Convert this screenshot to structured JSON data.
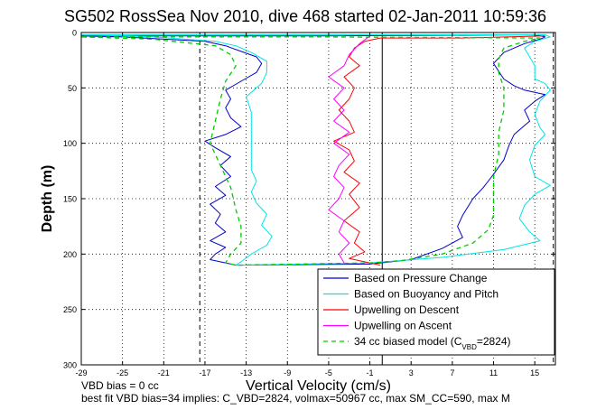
{
  "chart_data": {
    "type": "line",
    "title": "SG502 RossSea Nov 2010, dive 468 started 02-Jan-2011 10:59:36",
    "xlabel": "Vertical Velocity (cm/s)",
    "ylabel": "Depth (m)",
    "xlim": [
      -29,
      17
    ],
    "ylim": [
      300,
      0
    ],
    "y_reversed": true,
    "xticks": [
      -29,
      -25,
      -21,
      -17,
      -13,
      -9,
      -5,
      -1,
      3,
      7,
      11,
      15
    ],
    "yticks": [
      0,
      50,
      100,
      150,
      200,
      250,
      300
    ],
    "grid": "on",
    "grid_style": "dotted",
    "legend_position": "bottom-right",
    "reference_lines": [
      {
        "x": -17.5,
        "style": "dashed"
      },
      {
        "x": 0.2,
        "style": "solid"
      },
      {
        "x": 16.8,
        "style": "dashed"
      }
    ],
    "series": [
      {
        "name": "Based on Pressure Change",
        "color": "#0000cc",
        "style": "solid",
        "points": [
          [
            -29,
            3
          ],
          [
            -10,
            3
          ],
          [
            -5,
            3
          ],
          [
            15,
            2
          ],
          [
            16,
            4
          ],
          [
            15.5,
            6
          ],
          [
            14,
            10
          ],
          [
            12,
            18
          ],
          [
            11,
            28
          ],
          [
            12,
            42
          ],
          [
            13,
            48
          ],
          [
            14,
            52
          ],
          [
            16,
            56
          ],
          [
            15,
            62
          ],
          [
            14,
            70
          ],
          [
            14.5,
            80
          ],
          [
            13,
            92
          ],
          [
            12.5,
            102
          ],
          [
            12,
            115
          ],
          [
            11,
            128
          ],
          [
            10,
            140
          ],
          [
            9,
            150
          ],
          [
            8,
            165
          ],
          [
            7.5,
            175
          ],
          [
            8,
            185
          ],
          [
            6,
            195
          ],
          [
            3,
            205
          ],
          [
            -1,
            209
          ],
          [
            -14,
            210
          ],
          [
            -15,
            208
          ],
          [
            -16.5,
            205
          ],
          [
            -16,
            200
          ],
          [
            -15,
            194
          ],
          [
            -16.5,
            188
          ],
          [
            -15,
            180
          ],
          [
            -16,
            172
          ],
          [
            -15.5,
            164
          ],
          [
            -16.5,
            155
          ],
          [
            -15,
            147
          ],
          [
            -16,
            139
          ],
          [
            -14.5,
            130
          ],
          [
            -15.5,
            120
          ],
          [
            -14.5,
            112
          ],
          [
            -16,
            104
          ],
          [
            -17,
            98
          ],
          [
            -15,
            92
          ],
          [
            -13.5,
            85
          ],
          [
            -14.5,
            77
          ],
          [
            -15,
            68
          ],
          [
            -14.5,
            60
          ],
          [
            -15,
            52
          ],
          [
            -13.5,
            44
          ],
          [
            -12,
            36
          ],
          [
            -11.5,
            28
          ],
          [
            -12,
            22
          ],
          [
            -13.5,
            17
          ],
          [
            -15,
            12
          ],
          [
            -17,
            8
          ],
          [
            -25,
            4
          ],
          [
            -29,
            3
          ]
        ]
      },
      {
        "name": "Based on Buoyancy and Pitch",
        "color": "#00e5e5",
        "style": "solid",
        "points": [
          [
            -29,
            2
          ],
          [
            -10,
            2
          ],
          [
            -5,
            2
          ],
          [
            16,
            2
          ],
          [
            16.5,
            4
          ],
          [
            15,
            8
          ],
          [
            14,
            14
          ],
          [
            14.5,
            22
          ],
          [
            15,
            30
          ],
          [
            15,
            42
          ],
          [
            16,
            46
          ],
          [
            16.5,
            52
          ],
          [
            15.5,
            62
          ],
          [
            15,
            74
          ],
          [
            15.5,
            86
          ],
          [
            16,
            92
          ],
          [
            15,
            102
          ],
          [
            14.5,
            115
          ],
          [
            15,
            130
          ],
          [
            16.5,
            138
          ],
          [
            15,
            146
          ],
          [
            14,
            156
          ],
          [
            13.5,
            168
          ],
          [
            14.5,
            180
          ],
          [
            15.5,
            188
          ],
          [
            12,
            196
          ],
          [
            6,
            203
          ],
          [
            -1,
            208
          ],
          [
            -14,
            210
          ],
          [
            -13.5,
            207
          ],
          [
            -12.5,
            200
          ],
          [
            -11,
            192
          ],
          [
            -10.5,
            184
          ],
          [
            -11.5,
            174
          ],
          [
            -11,
            164
          ],
          [
            -12,
            154
          ],
          [
            -12.5,
            144
          ],
          [
            -12,
            134
          ],
          [
            -12.5,
            124
          ],
          [
            -12.5,
            112
          ],
          [
            -12.5,
            100
          ],
          [
            -12.5,
            86
          ],
          [
            -12.5,
            72
          ],
          [
            -13,
            58
          ],
          [
            -11.5,
            46
          ],
          [
            -11,
            36
          ],
          [
            -11,
            26
          ],
          [
            -12.5,
            18
          ],
          [
            -14,
            12
          ],
          [
            -16,
            8
          ],
          [
            -22,
            4
          ],
          [
            -29,
            2
          ]
        ]
      },
      {
        "name": "Upwelling on Descent",
        "color": "#ff0000",
        "style": "solid",
        "points": [
          [
            16,
            3
          ],
          [
            8,
            5
          ],
          [
            0,
            5
          ],
          [
            -1.5,
            8
          ],
          [
            -2.5,
            14
          ],
          [
            -3,
            22
          ],
          [
            -2,
            30
          ],
          [
            -3.5,
            40
          ],
          [
            -2.5,
            50
          ],
          [
            -3,
            60
          ],
          [
            -4,
            70
          ],
          [
            -3,
            80
          ],
          [
            -2.5,
            90
          ],
          [
            -4.5,
            98
          ],
          [
            -3,
            106
          ],
          [
            -2.5,
            116
          ],
          [
            -3.5,
            126
          ],
          [
            -2,
            136
          ],
          [
            -3,
            146
          ],
          [
            -2,
            158
          ],
          [
            -3.5,
            170
          ],
          [
            -2,
            180
          ],
          [
            -2.5,
            190
          ],
          [
            -1.5,
            198
          ],
          [
            -3,
            204
          ],
          [
            -1,
            208
          ],
          [
            0,
            210
          ]
        ]
      },
      {
        "name": "Upwelling on Ascent",
        "color": "#ff00ff",
        "style": "solid",
        "points": [
          [
            -1,
            3
          ],
          [
            -2,
            10
          ],
          [
            -3,
            20
          ],
          [
            -3.5,
            30
          ],
          [
            -5,
            40
          ],
          [
            -3.5,
            50
          ],
          [
            -4.5,
            60
          ],
          [
            -3.5,
            70
          ],
          [
            -4.5,
            80
          ],
          [
            -3,
            90
          ],
          [
            -4.5,
            100
          ],
          [
            -3,
            110
          ],
          [
            -4,
            120
          ],
          [
            -4.5,
            130
          ],
          [
            -3.5,
            140
          ],
          [
            -4,
            150
          ],
          [
            -5,
            160
          ],
          [
            -3.5,
            170
          ],
          [
            -4,
            180
          ],
          [
            -3,
            190
          ],
          [
            -4,
            200
          ],
          [
            -3.5,
            208
          ]
        ]
      },
      {
        "name": "34 cc biased model (C_VBD=2824)",
        "color": "#00cc00",
        "style": "dashed",
        "points": [
          [
            -29,
            4
          ],
          [
            -10,
            4
          ],
          [
            -5,
            4
          ],
          [
            15.5,
            5
          ],
          [
            14,
            8
          ],
          [
            12,
            14
          ],
          [
            11.5,
            24
          ],
          [
            11.5,
            36
          ],
          [
            12,
            50
          ],
          [
            12,
            70
          ],
          [
            11.5,
            90
          ],
          [
            11.5,
            110
          ],
          [
            11,
            130
          ],
          [
            11,
            150
          ],
          [
            11,
            165
          ],
          [
            10.5,
            178
          ],
          [
            9,
            190
          ],
          [
            6,
            200
          ],
          [
            2,
            206
          ],
          [
            -1,
            208
          ],
          [
            -14,
            210
          ],
          [
            -15,
            208
          ],
          [
            -14.5,
            200
          ],
          [
            -13.5,
            190
          ],
          [
            -13.5,
            175
          ],
          [
            -14,
            160
          ],
          [
            -14.5,
            140
          ],
          [
            -15.5,
            120
          ],
          [
            -16.5,
            100
          ],
          [
            -16,
            80
          ],
          [
            -15.5,
            60
          ],
          [
            -15,
            44
          ],
          [
            -14,
            30
          ],
          [
            -14.5,
            20
          ],
          [
            -16,
            12
          ],
          [
            -22,
            6
          ],
          [
            -29,
            4
          ]
        ]
      }
    ],
    "legend": {
      "entries": [
        "Based on Pressure Change",
        "Based on Buoyancy and Pitch",
        "Upwelling on Descent",
        "Upwelling on Ascent",
        "34 cc biased model (C"
      ],
      "last_entry_subscript": "VBD",
      "last_entry_suffix": "=2824)"
    },
    "annotations": {
      "line1": "VBD bias = 0 cc",
      "line2": "best fit VBD bias=34 implies: C_VBD=2824, volmax=50967 cc, max SM_CC=590, max M"
    }
  }
}
